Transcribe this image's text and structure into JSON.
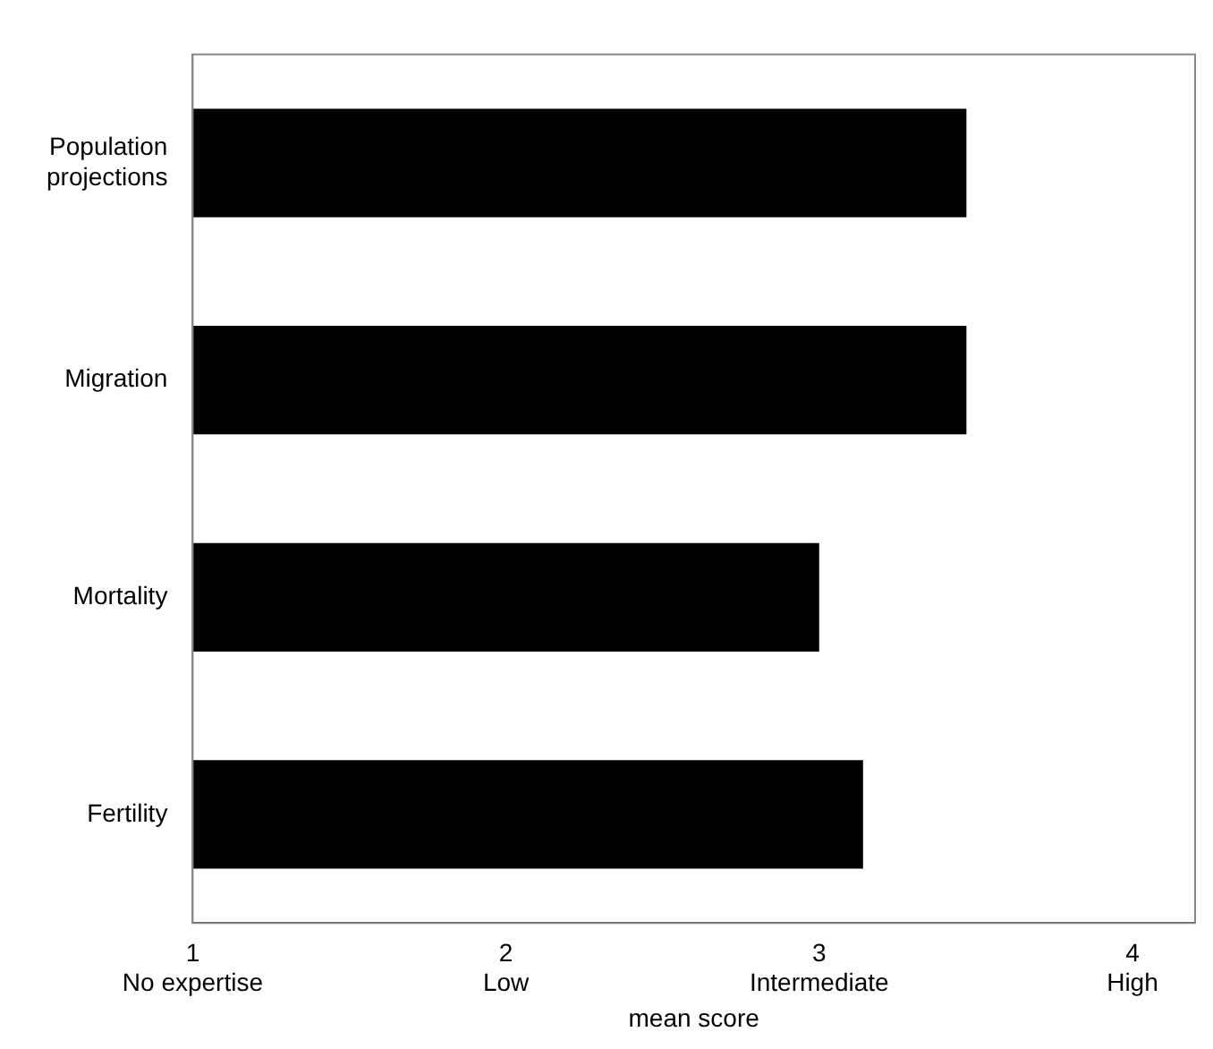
{
  "chart_data": {
    "type": "bar",
    "orientation": "horizontal",
    "xlabel": "mean score",
    "categories": [
      "Population projections",
      "Migration",
      "Mortality",
      "Fertility"
    ],
    "values": [
      3.47,
      3.47,
      3.0,
      3.14
    ],
    "color": "#000000",
    "xlim": [
      1,
      4.2
    ],
    "xticks": [
      {
        "value": 1,
        "label": "1\nNo expertise"
      },
      {
        "value": 2,
        "label": "2\nLow"
      },
      {
        "value": 3,
        "label": "3\nIntermediate"
      },
      {
        "value": 4,
        "label": "4\nHigh"
      }
    ],
    "grid": false,
    "legend": false
  }
}
